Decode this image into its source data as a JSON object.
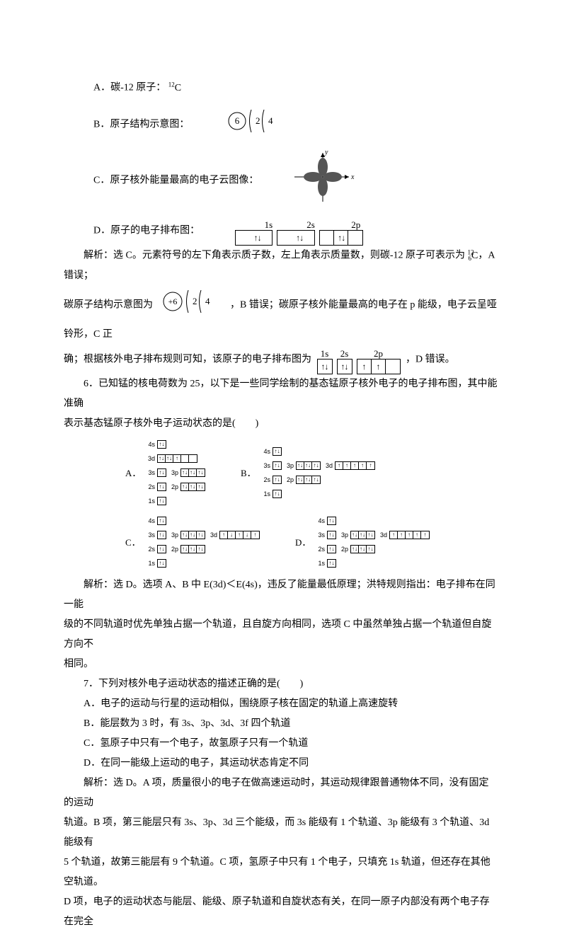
{
  "colors": {
    "text": "#000000",
    "bg": "#ffffff",
    "border": "#000000"
  },
  "fonts": {
    "body": "SimSun",
    "math": "Times New Roman",
    "body_size": 14,
    "label_size": 13
  },
  "item_A": {
    "prefix": "A．碳-12 原子：",
    "symbol_sup": "12",
    "symbol": "C"
  },
  "item_B": {
    "prefix": "B．原子结构示意图：",
    "nucleus": "6",
    "shells": [
      "2",
      "4"
    ]
  },
  "item_C": {
    "prefix": "C．原子核外能量最高的电子云图像：",
    "axis_x": "x",
    "axis_y": "y"
  },
  "item_D": {
    "prefix": "D．原子的电子排布图：",
    "orbitals": [
      {
        "label": "1s",
        "boxes": [
          "↑↓"
        ]
      },
      {
        "label": "2s",
        "boxes": [
          "↑↓"
        ]
      },
      {
        "label": "2p",
        "boxes": [
          "↑↓",
          "",
          ""
        ]
      }
    ]
  },
  "analysis1_a": "解析：选 C。元素符号的左下角表示质子数，左上角表示质量数，则碳-12 原子可表示为 ",
  "analysis1_a_sup": "12",
  "analysis1_a_sub": "6",
  "analysis1_a_sym": "C",
  "analysis1_a_tail": "，A 错误；",
  "analysis1_b_pre": "碳原子结构示意图为",
  "analysis1_b_nucleus": "+6",
  "analysis1_b_shells": [
    "2",
    "4"
  ],
  "analysis1_b_post": "，B 错误；碳原子核外能量最高的电子在 p 能级，电子云呈哑铃形，C 正",
  "analysis1_c": "确；根据核外电子排布规则可知，该原子的电子排布图为",
  "analysis1_orbitals": [
    {
      "label": "1s",
      "boxes": [
        "↑↓"
      ]
    },
    {
      "label": "2s",
      "boxes": [
        "↑↓"
      ]
    },
    {
      "label": "2p",
      "boxes": [
        "↑",
        "↑",
        ""
      ]
    }
  ],
  "analysis1_c_tail": "，D 错误。",
  "q6_text": "6．已知锰的核电荷数为 25，以下是一些同学绘制的基态锰原子核外电子的电子排布图，其中能准确",
  "q6_text2": "表示基态锰原子核外电子运动状态的是(　　)",
  "q6_options": {
    "A": [
      {
        "l": "4s",
        "b": [
          "↑↓"
        ]
      },
      {
        "l": "3d",
        "b": [
          "↑↓",
          "↑↓",
          "↑",
          "",
          ""
        ]
      },
      {
        "l": "3s",
        "b": [
          "↑↓"
        ]
      },
      {
        "l": "3p",
        "b": [
          "↑↓",
          "↑↓",
          "↑↓"
        ]
      },
      {
        "l": "2s",
        "b": [
          "↑↓"
        ]
      },
      {
        "l": "2p",
        "b": [
          "↑↓",
          "↑↓",
          "↑↓"
        ]
      },
      {
        "l": "1s",
        "b": [
          "↑↓"
        ]
      }
    ],
    "B": [
      {
        "l": "4s",
        "b": [
          "↑↓"
        ]
      },
      {
        "l": "3s",
        "b": [
          "↑↓"
        ]
      },
      {
        "l": "3p",
        "b": [
          "↑↓",
          "↑↓",
          "↑↓"
        ]
      },
      {
        "l": "3d",
        "b": [
          "↑",
          "↑",
          "↑",
          "↑",
          "↑"
        ]
      },
      {
        "l": "2s",
        "b": [
          "↑↓"
        ]
      },
      {
        "l": "2p",
        "b": [
          "↑↓",
          "↑↓",
          "↑↓"
        ]
      },
      {
        "l": "1s",
        "b": [
          "↑↓"
        ]
      }
    ],
    "C": [
      {
        "l": "4s",
        "b": [
          "↑↓"
        ]
      },
      {
        "l": "3s",
        "b": [
          "↑↓"
        ]
      },
      {
        "l": "3p",
        "b": [
          "↑↓",
          "↑↓",
          "↑↓"
        ]
      },
      {
        "l": "3d",
        "b": [
          "↑",
          "↓",
          "↑",
          "↓",
          "↑"
        ]
      },
      {
        "l": "2s",
        "b": [
          "↑↓"
        ]
      },
      {
        "l": "2p",
        "b": [
          "↑↓",
          "↑↓",
          "↑↓"
        ]
      },
      {
        "l": "1s",
        "b": [
          "↑↓"
        ]
      }
    ],
    "D": [
      {
        "l": "4s",
        "b": [
          "↑↓"
        ]
      },
      {
        "l": "3s",
        "b": [
          "↑↓"
        ]
      },
      {
        "l": "3p",
        "b": [
          "↑↓",
          "↑↓",
          "↑↓"
        ]
      },
      {
        "l": "3d",
        "b": [
          "↑",
          "↑",
          "↑",
          "↑",
          "↑"
        ]
      },
      {
        "l": "2s",
        "b": [
          "↑↓"
        ]
      },
      {
        "l": "2p",
        "b": [
          "↑↓",
          "↑↓",
          "↑↓"
        ]
      },
      {
        "l": "1s",
        "b": [
          "↑↓"
        ]
      }
    ]
  },
  "q6_analysis1": "解析：选 D。选项 A、B 中 E(3d)＜E(4s)，违反了能量最低原理；洪特规则指出：电子排布在同一能",
  "q6_analysis2": "级的不同轨道时优先单独占据一个轨道，且自旋方向相同，选项 C 中虽然单独占据一个轨道但自旋方向不",
  "q6_analysis3": "相同。",
  "q7_text": "7．下列对核外电子运动状态的描述正确的是(　　)",
  "q7_A": "A．电子的运动与行星的运动相似，围绕原子核在固定的轨道上高速旋转",
  "q7_B": "B．能层数为 3 时，有 3s、3p、3d、3f 四个轨道",
  "q7_C": "C．氢原子中只有一个电子，故氢原子只有一个轨道",
  "q7_D": "D．在同一能级上运动的电子，其运动状态肯定不同",
  "q7_analysis1": "解析：选 D。A 项，质量很小的电子在做高速运动时，其运动规律跟普通物体不同，没有固定的运动",
  "q7_analysis2": "轨道。B 项，第三能层只有 3s、3p、3d 三个能级，而 3s 能级有 1 个轨道、3p 能级有 3 个轨道、3d 能级有",
  "q7_analysis3": "5 个轨道，故第三能层有 9 个轨道。C 项，氢原子中只有 1 个电子，只填充 1s 轨道，但还存在其他空轨道。",
  "q7_analysis4": "D 项，电子的运动状态与能层、能级、原子轨道和自旋状态有关，在同一原子内部没有两个电子存在完全"
}
